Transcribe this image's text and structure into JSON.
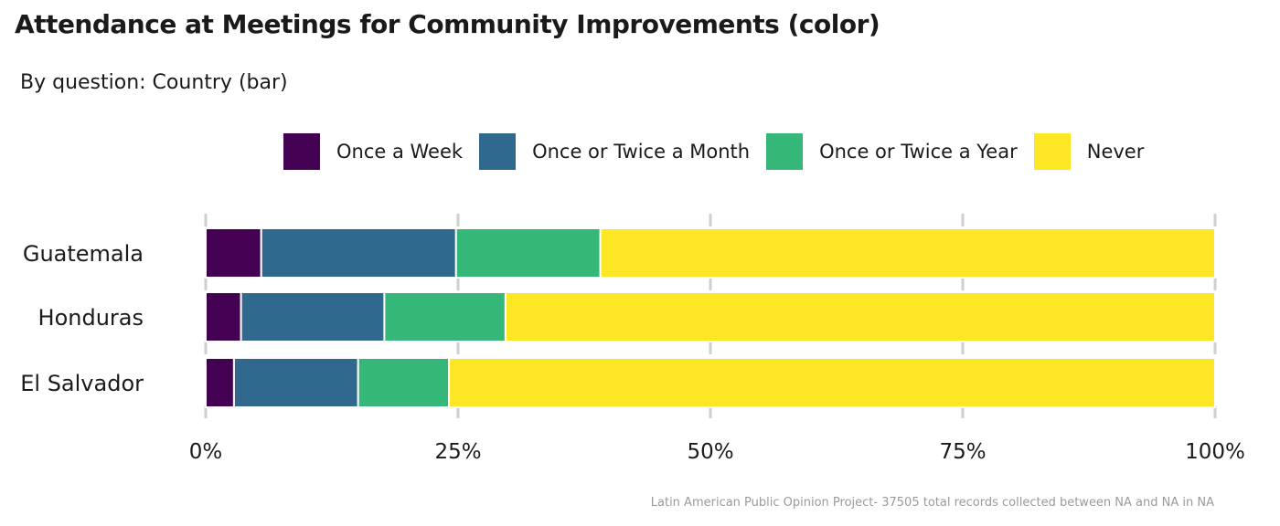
{
  "title": "Attendance at Meetings for Community Improvements (color)",
  "subtitle": "By question: Country (bar)",
  "caption": "Latin American Public Opinion Project- 37505 total records collected between NA and NA in  NA",
  "legend": [
    {
      "label": "Once a Week",
      "color": "#440154"
    },
    {
      "label": "Once or Twice a Month",
      "color": "#31688e"
    },
    {
      "label": "Once or Twice a Year",
      "color": "#35b779"
    },
    {
      "label": "Never",
      "color": "#fde725"
    }
  ],
  "chart_data": {
    "type": "bar",
    "orientation": "horizontal",
    "stacked": true,
    "categories": [
      "Guatemala",
      "Honduras",
      "El Salvador"
    ],
    "series": [
      {
        "name": "Once a Week",
        "color": "#440154",
        "values": [
          5.5,
          3.5,
          2.8
        ]
      },
      {
        "name": "Once or Twice a Month",
        "color": "#31688e",
        "values": [
          19.3,
          14.2,
          12.3
        ]
      },
      {
        "name": "Once or Twice a Year",
        "color": "#35b779",
        "values": [
          14.3,
          12.0,
          9.0
        ]
      },
      {
        "name": "Never",
        "color": "#fde725",
        "values": [
          60.9,
          70.3,
          75.9
        ]
      }
    ],
    "xlim": [
      0,
      100
    ],
    "x_ticks": [
      0,
      25,
      50,
      75,
      100
    ],
    "x_tick_labels": [
      "0%",
      "25%",
      "50%",
      "75%",
      "100%"
    ],
    "grid": true,
    "legend_position": "top"
  }
}
